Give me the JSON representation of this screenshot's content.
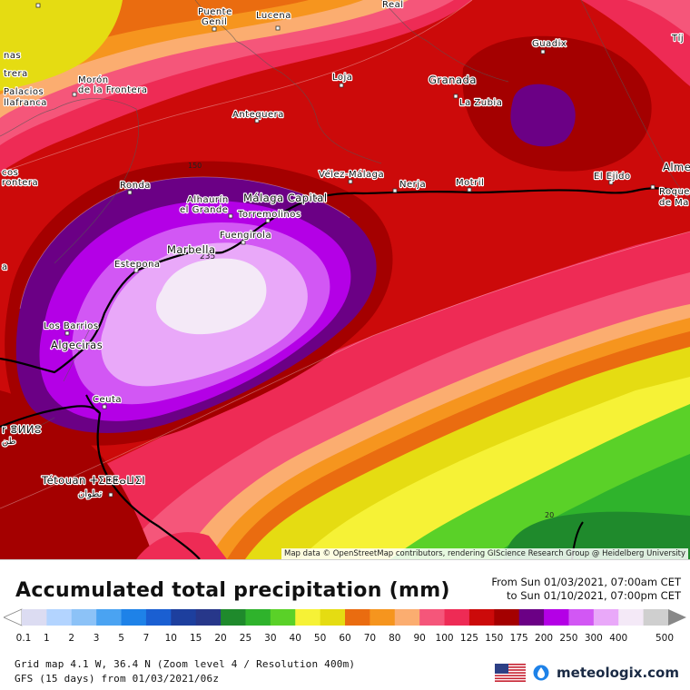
{
  "map": {
    "attribution": "Map data © OpenStreetMap contributors, rendering GIScience Research Group @ Heidelberg University",
    "contour_labels": [
      {
        "value": "150"
      },
      {
        "value": "20"
      },
      {
        "value": "235"
      }
    ],
    "places": [
      {
        "name": "Puente",
        "size": "normal"
      },
      {
        "name": "Genil",
        "size": "normal"
      },
      {
        "name": "Lucena",
        "size": "normal"
      },
      {
        "name": "Real",
        "size": "normal"
      },
      {
        "name": "Guadix",
        "size": "normal"
      },
      {
        "name": "Tíj",
        "size": "normal"
      },
      {
        "name": "nas",
        "size": "normal"
      },
      {
        "name": "trera",
        "size": "normal"
      },
      {
        "name": "Palacios",
        "size": "normal"
      },
      {
        "name": "llafranca",
        "size": "normal"
      },
      {
        "name": "Morón",
        "size": "normal"
      },
      {
        "name": "de la Frontera",
        "size": "normal"
      },
      {
        "name": "Loja",
        "size": "normal"
      },
      {
        "name": "Granada",
        "size": "large"
      },
      {
        "name": "La Zubia",
        "size": "normal"
      },
      {
        "name": "Antequera",
        "size": "normal"
      },
      {
        "name": "cos",
        "size": "normal"
      },
      {
        "name": "rontera",
        "size": "normal"
      },
      {
        "name": "Ronda",
        "size": "normal"
      },
      {
        "name": "Vélez-Málaga",
        "size": "normal"
      },
      {
        "name": "Nerja",
        "size": "normal"
      },
      {
        "name": "Motril",
        "size": "normal"
      },
      {
        "name": "El Ejido",
        "size": "normal"
      },
      {
        "name": "Alme",
        "size": "large"
      },
      {
        "name": "Roque",
        "size": "normal"
      },
      {
        "name": "de Ma",
        "size": "normal"
      },
      {
        "name": "Alhaurín",
        "size": "normal"
      },
      {
        "name": "el Grande",
        "size": "normal"
      },
      {
        "name": "Málaga Capital",
        "size": "large"
      },
      {
        "name": "Torremolinos",
        "size": "normal"
      },
      {
        "name": "Fuengirola",
        "size": "normal"
      },
      {
        "name": "Marbella",
        "size": "large"
      },
      {
        "name": "Estepona",
        "size": "normal"
      },
      {
        "name": "a",
        "size": "normal"
      },
      {
        "name": "Los Barrios",
        "size": "normal"
      },
      {
        "name": "Algeciras",
        "size": "large"
      },
      {
        "name": "Ceuta",
        "size": "normal"
      },
      {
        "name": "r ⴻⵍⵍⵓ",
        "size": "large"
      },
      {
        "name": "طن",
        "size": "normal"
      },
      {
        "name": "Tétouan ⵜⵉⵟⵟⴰⵡⵉⵏ",
        "size": "large"
      },
      {
        "name": "تطوان",
        "size": "normal"
      }
    ]
  },
  "title": "Accumulated total precipitation (mm)",
  "period": {
    "from": "From Sun 01/03/2021, 07:00am CET",
    "to": "to Sun 01/10/2021, 07:00pm CET"
  },
  "legend": {
    "labels": [
      "0.1",
      "1",
      "2",
      "3",
      "5",
      "7",
      "10",
      "15",
      "20",
      "25",
      "30",
      "40",
      "50",
      "60",
      "70",
      "80",
      "90",
      "100",
      "125",
      "150",
      "175",
      "200",
      "250",
      "300",
      "400",
      "500"
    ],
    "colors": [
      "#dcdcf2",
      "#b3d4ff",
      "#8cc2f7",
      "#4aa3f2",
      "#1e82e8",
      "#1a5fd2",
      "#1d3f9e",
      "#27378a",
      "#1f8a2c",
      "#2fb32c",
      "#5ad128",
      "#f6f236",
      "#e5dc12",
      "#ea6c10",
      "#f6951e",
      "#fbad70",
      "#f5567a",
      "#ee2b55",
      "#cc0a0a",
      "#a40000",
      "#6b0085",
      "#b400e6",
      "#d257f4",
      "#e9a8f9",
      "#f4e9f7",
      "#cfcfcf"
    ]
  },
  "footer": {
    "line1": "Grid map 4.1 W, 36.4 N (Zoom level 4 / Resolution 400m)",
    "line2": "GFS (15 days) from 01/03/2021/06z"
  },
  "brand": {
    "name": "meteologix.com",
    "flag": "us-flag-icon",
    "logo": "meteologix-drop-icon"
  }
}
